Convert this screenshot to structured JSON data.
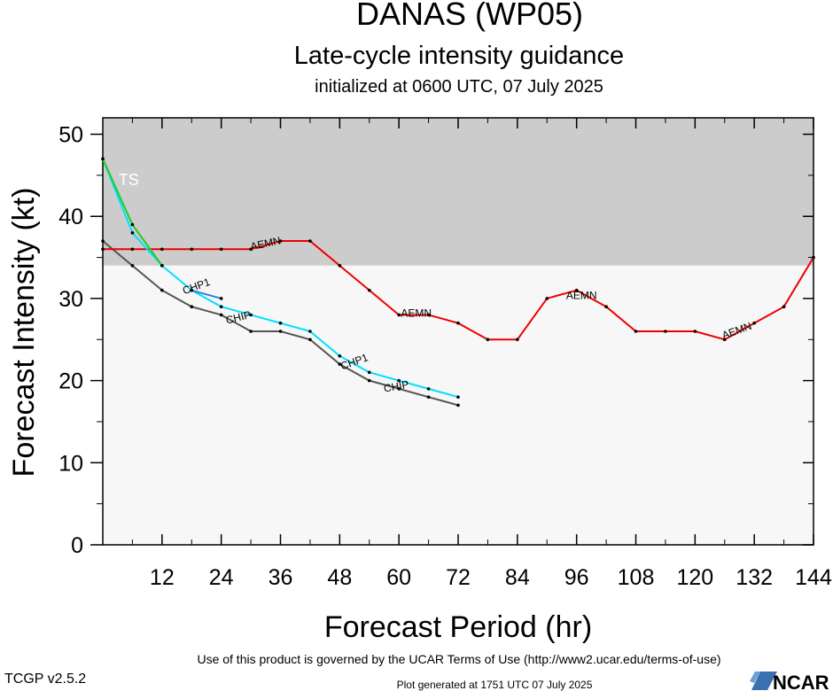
{
  "chart_data": {
    "type": "line",
    "title": "DANAS (WP05)",
    "subtitle": "Late-cycle intensity guidance",
    "subtitle2": "initialized at 0600 UTC, 07 July 2025",
    "xlabel": "Forecast Period (hr)",
    "ylabel": "Forecast Intensity (kt)",
    "xlim": [
      0,
      144
    ],
    "ylim": [
      0,
      52
    ],
    "xticks": [
      12,
      24,
      36,
      48,
      60,
      72,
      84,
      96,
      108,
      120,
      132,
      144
    ],
    "yticks": [
      0,
      10,
      20,
      30,
      40,
      50
    ],
    "bands": [
      {
        "label": "TS",
        "from": 34,
        "to": 64,
        "color": "#cccccc"
      },
      {
        "label": "",
        "from": 0,
        "to": 34,
        "color": "#f7f7f7"
      }
    ],
    "series": [
      {
        "name": "AEMN",
        "color": "#ee0000",
        "x": [
          0,
          6,
          12,
          18,
          24,
          30,
          36,
          42,
          48,
          54,
          60,
          66,
          72,
          78,
          84,
          90,
          96,
          102,
          108,
          114,
          120,
          126,
          132,
          138,
          144
        ],
        "y": [
          36,
          36,
          36,
          36,
          36,
          36,
          37,
          37,
          34,
          31,
          28,
          28,
          27,
          25,
          25,
          30,
          31,
          29,
          26,
          26,
          26,
          25,
          27,
          29,
          35
        ],
        "labels": [
          {
            "text": "AEMN",
            "x": 33,
            "y": 36.6,
            "angle": -12
          },
          {
            "text": "AEMN",
            "x": 63.5,
            "y": 28.1,
            "angle": 0
          },
          {
            "text": "AEMN",
            "x": 97,
            "y": 30.3,
            "angle": 0
          },
          {
            "text": "AEMN",
            "x": 128.5,
            "y": 26.0,
            "angle": -20
          }
        ]
      },
      {
        "name": "CHIP",
        "color": "#555555",
        "x": [
          0,
          6,
          12,
          18,
          24,
          30,
          36,
          42,
          48,
          54,
          60,
          66,
          72
        ],
        "y": [
          37,
          34,
          31,
          29,
          28,
          26,
          26,
          25,
          22,
          20,
          19,
          18,
          17
        ],
        "labels": [
          {
            "text": "CHIP",
            "x": 27.5,
            "y": 27.6,
            "angle": -14
          },
          {
            "text": "CHIP",
            "x": 59.5,
            "y": 19.2,
            "angle": -10
          }
        ]
      },
      {
        "name": "",
        "color": "#00e0ff",
        "x": [
          0,
          6,
          12,
          18,
          24,
          30,
          36,
          42,
          48,
          54,
          60,
          66,
          72
        ],
        "y": [
          47,
          38,
          34,
          31,
          29,
          28,
          27,
          26,
          23,
          21,
          20,
          19,
          18
        ],
        "labels": [
          {
            "text": "CHP1",
            "x": 19,
            "y": 31.4,
            "angle": -20
          },
          {
            "text": "CHP1",
            "x": 51,
            "y": 22.2,
            "angle": -20
          }
        ]
      },
      {
        "name": "",
        "color": "#2d7fe0",
        "x": [
          18,
          24
        ],
        "y": [
          31,
          30
        ],
        "labels": []
      },
      {
        "name": "",
        "color": "#22cc22",
        "x": [
          0,
          6,
          12
        ],
        "y": [
          47,
          39,
          34
        ],
        "labels": []
      }
    ]
  },
  "footer": {
    "terms": "Use of this product is governed by the UCAR Terms of Use (http://www2.ucar.edu/terms-of-use)",
    "version": "TCGP v2.5.2",
    "generated": "Plot generated at 1751 UTC   07 July 2025",
    "logo_text": "NCAR"
  }
}
